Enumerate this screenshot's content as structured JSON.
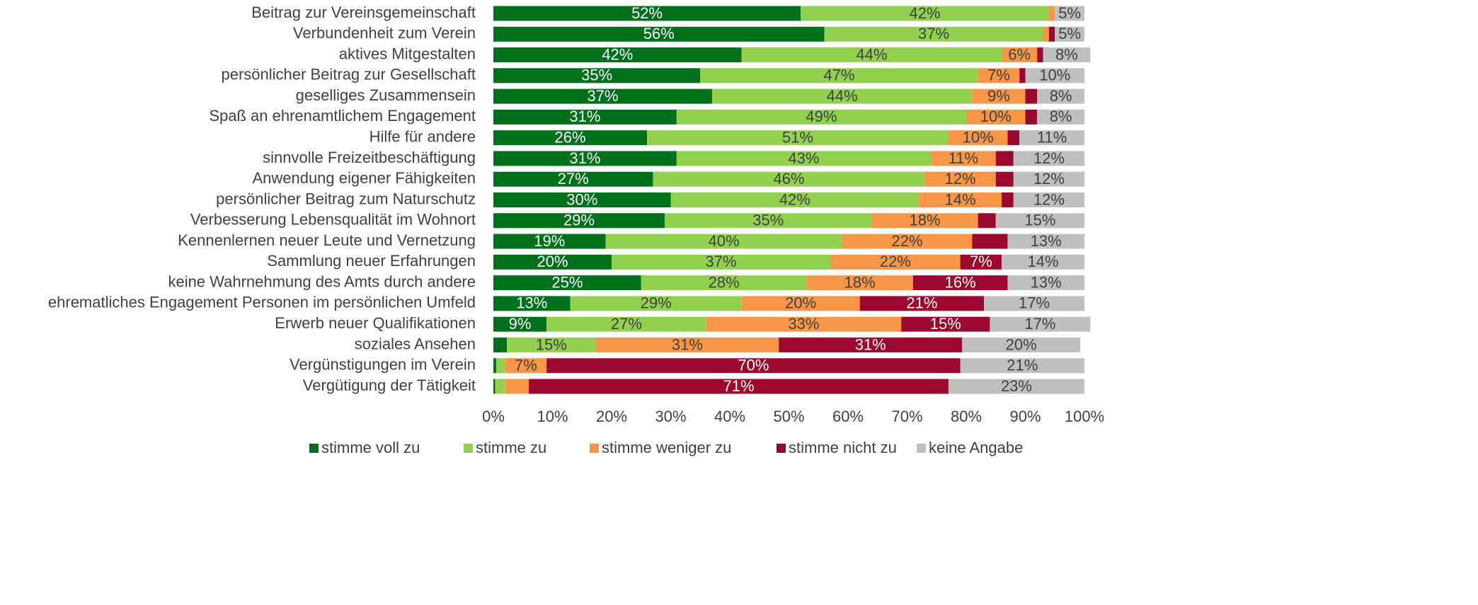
{
  "chart_data": {
    "type": "stacked-bar-horizontal",
    "categories": [
      "Beitrag zur Vereinsgemeinschaft",
      "Verbundenheit zum Verein",
      "aktives Mitgestalten",
      "persönlicher Beitrag zur Gesellschaft",
      "geselliges Zusammensein",
      "Spaß an ehrenamtlichem Engagement",
      "Hilfe für andere",
      "sinnvolle Freizeitbeschäftigung",
      "Anwendung eigener Fähigkeiten",
      "persönlicher Beitrag zum Naturschutz",
      "Verbesserung Lebensqualität im Wohnort",
      "Kennenlernen neuer Leute und Vernetzung",
      "Sammlung neuer Erfahrungen",
      "keine Wahrnehmung des Amts durch andere",
      "ehrematliches Engagement Personen im persönlichen Umfeld",
      "Erwerb neuer Qualifikationen",
      "soziales Ansehen",
      "Vergünstigungen im Verein",
      "Vergütigung der Tätigkeit"
    ],
    "series": [
      {
        "name": "stimme voll zu",
        "color": "#00701c",
        "values": [
          52,
          56,
          42,
          35,
          37,
          31,
          26,
          31,
          27,
          30,
          29,
          19,
          20,
          25,
          13,
          9,
          2.3,
          0.5,
          0.3
        ],
        "value_labels": [
          "52%",
          "56%",
          "42%",
          "35%",
          "37%",
          "31%",
          "26%",
          "31%",
          "27%",
          "30%",
          "29%",
          "19%",
          "20%",
          "25%",
          "13%",
          "9%",
          null,
          null,
          null
        ]
      },
      {
        "name": "stimme zu",
        "color": "#92d050",
        "values": [
          42,
          37,
          44,
          47,
          44,
          49,
          51,
          43,
          46,
          42,
          35,
          40,
          37,
          28,
          29,
          27,
          15,
          1.5,
          1.7
        ],
        "value_labels": [
          "42%",
          "37%",
          "44%",
          "47%",
          "44%",
          "49%",
          "51%",
          "43%",
          "46%",
          "42%",
          "35%",
          "40%",
          "37%",
          "28%",
          "29%",
          "27%",
          "15%",
          null,
          null
        ]
      },
      {
        "name": "stimme weniger zu",
        "color": "#f79646",
        "values": [
          1,
          1,
          6,
          7,
          9,
          10,
          10,
          11,
          12,
          14,
          18,
          22,
          22,
          18,
          20,
          33,
          31,
          7,
          4
        ],
        "value_labels": [
          null,
          null,
          "6%",
          "7%",
          "9%",
          "10%",
          "10%",
          "11%",
          "12%",
          "14%",
          "18%",
          "22%",
          "22%",
          "18%",
          "20%",
          "33%",
          "31%",
          "7%",
          null
        ]
      },
      {
        "name": "stimme nicht zu",
        "color": "#9b0a2e",
        "values": [
          0,
          1,
          1,
          1,
          2,
          2,
          2,
          3,
          3,
          2,
          3,
          6,
          7,
          16,
          21,
          15,
          31,
          70,
          71
        ],
        "value_labels": [
          null,
          null,
          null,
          null,
          null,
          null,
          null,
          null,
          null,
          null,
          null,
          null,
          "7%",
          "16%",
          "21%",
          "15%",
          "31%",
          "70%",
          "71%"
        ]
      },
      {
        "name": "keine Angabe",
        "color": "#bfbfbf",
        "values": [
          5,
          5,
          8,
          10,
          8,
          8,
          11,
          12,
          12,
          12,
          15,
          13,
          14,
          13,
          17,
          17,
          20,
          21,
          23
        ],
        "value_labels": [
          "5%",
          "5%",
          "8%",
          "10%",
          "8%",
          "8%",
          "11%",
          "12%",
          "12%",
          "12%",
          "15%",
          "13%",
          "14%",
          "13%",
          "17%",
          "17%",
          "20%",
          "21%",
          "23%"
        ]
      }
    ],
    "xlim": [
      0,
      100
    ],
    "xticks": [
      {
        "value": 0,
        "label": "0%"
      },
      {
        "value": 10,
        "label": "10%"
      },
      {
        "value": 20,
        "label": "20%"
      },
      {
        "value": 30,
        "label": "30%"
      },
      {
        "value": 40,
        "label": "40%"
      },
      {
        "value": 50,
        "label": "50%"
      },
      {
        "value": 60,
        "label": "60%"
      },
      {
        "value": 70,
        "label": "70%"
      },
      {
        "value": 80,
        "label": "80%"
      },
      {
        "value": 90,
        "label": "90%"
      },
      {
        "value": 100,
        "label": "100%"
      }
    ],
    "legend": "bottom"
  }
}
